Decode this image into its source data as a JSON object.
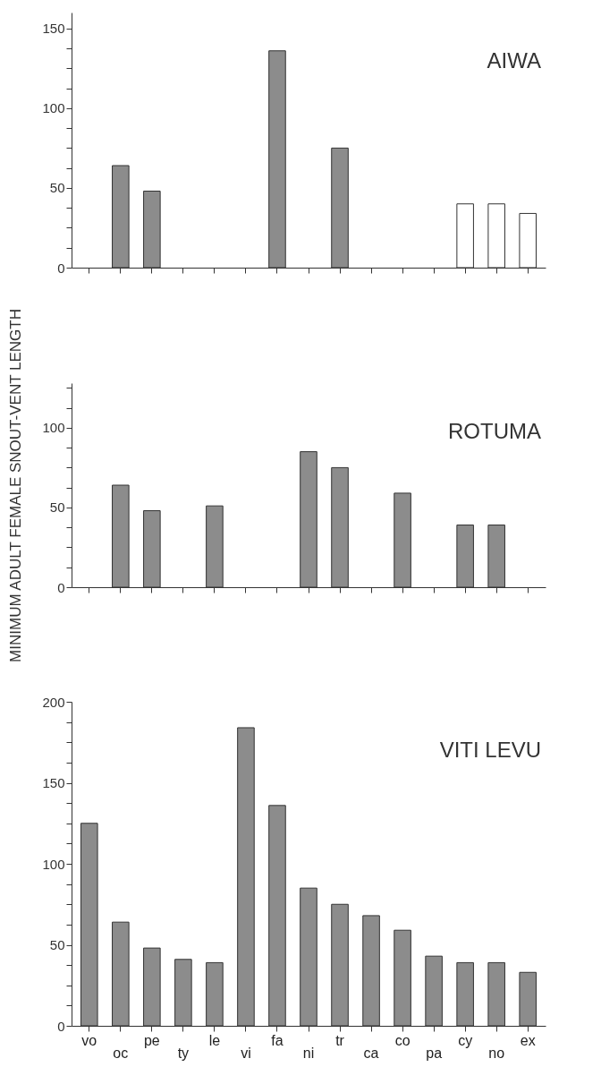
{
  "chart_data": [
    {
      "type": "bar",
      "annotations": [
        "AIWA"
      ],
      "categories": [
        null,
        null,
        null,
        null,
        null,
        null,
        null,
        null,
        null,
        null,
        null,
        null,
        null,
        null,
        null
      ],
      "tick_labels": "y",
      "values": [
        null,
        64,
        48,
        null,
        null,
        null,
        136,
        null,
        75,
        null,
        null,
        null,
        40,
        40,
        34
      ],
      "colors": [
        "#8c8c8c",
        "#8c8c8c",
        "#8c8c8c",
        "#8c8c8c",
        "#8c8c8c",
        "#8c8c8c",
        "#8c8c8c",
        "#8c8c8c",
        "#8c8c8c",
        "#8c8c8c",
        "#8c8c8c",
        "#8c8c8c",
        "#ffffff",
        "#ffffff",
        "#ffffff"
      ],
      "ylim": [
        0,
        160
      ],
      "yticks": [
        0,
        {
          "value": 12.5,
          "label": null
        },
        {
          "value": 25,
          "label": null
        },
        {
          "value": 37.5,
          "label": null
        },
        50,
        {
          "value": 62.5,
          "label": null
        },
        {
          "value": 75,
          "label": null
        },
        {
          "value": 87.5,
          "label": null
        },
        100,
        {
          "value": 112.5,
          "label": null
        },
        {
          "value": 125,
          "label": null
        },
        {
          "value": 137.5,
          "label": null
        },
        150
      ]
    },
    {
      "type": "bar",
      "annotations": [
        "ROTUMA"
      ],
      "ylabel": "MINIMUM ADULT FEMALE SNOUT-VENT LENGTH",
      "categories": [
        null,
        null,
        null,
        null,
        null,
        null,
        null,
        null,
        null,
        null,
        null,
        null,
        null,
        null,
        null
      ],
      "tick_labels": "y",
      "values": [
        null,
        64,
        48,
        null,
        51,
        null,
        null,
        85,
        75,
        null,
        59,
        null,
        39,
        39,
        null
      ],
      "color": "#8c8c8c",
      "ylim": [
        0,
        128
      ],
      "yticks": [
        0,
        {
          "value": 12.5,
          "label": null
        },
        {
          "value": 25,
          "label": null
        },
        {
          "value": 37.5,
          "label": null
        },
        50,
        {
          "value": 62.5,
          "label": null
        },
        {
          "value": 75,
          "label": null
        },
        {
          "value": 87.5,
          "label": null
        },
        100,
        {
          "value": 112.5,
          "label": null
        },
        {
          "value": 125,
          "label": null
        }
      ]
    },
    {
      "type": "bar",
      "annotations": [
        "VITI LEVU"
      ],
      "categories": [
        "vo",
        "oc",
        "pe",
        "ty",
        "le",
        "vi",
        "fa",
        "ni",
        "tr",
        "ca",
        "co",
        "pa",
        "cy",
        "no",
        "ex"
      ],
      "values": [
        125,
        64,
        48,
        41,
        39,
        184,
        136,
        85,
        75,
        68,
        59,
        43,
        39,
        39,
        33
      ],
      "color": "#8c8c8c",
      "ylim": [
        0,
        200
      ],
      "yticks": [
        0,
        {
          "value": 12.5,
          "label": null
        },
        {
          "value": 25,
          "label": null
        },
        {
          "value": 37.5,
          "label": null
        },
        50,
        {
          "value": 62.5,
          "label": null
        },
        {
          "value": 75,
          "label": null
        },
        {
          "value": 87.5,
          "label": null
        },
        100,
        {
          "value": 112.5,
          "label": null
        },
        {
          "value": 125,
          "label": null
        },
        {
          "value": 137.5,
          "label": null
        },
        150,
        {
          "value": 162.5,
          "label": null
        },
        {
          "value": 175,
          "label": null
        },
        {
          "value": 187.5,
          "label": null
        },
        200
      ]
    }
  ]
}
